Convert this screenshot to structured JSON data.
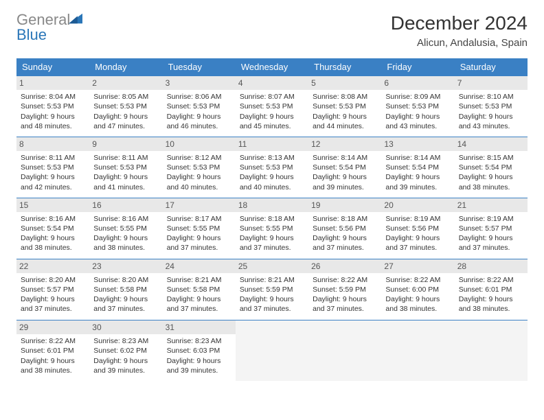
{
  "logo": {
    "word1": "General",
    "word2": "Blue"
  },
  "title": "December 2024",
  "subtitle": "Alicun, Andalusia, Spain",
  "colors": {
    "header_bg": "#3a80c4",
    "header_text": "#ffffff",
    "daynum_bg": "#e8e8e8",
    "row_border": "#3a80c4",
    "logo_gray": "#888888",
    "logo_blue": "#2a76b8"
  },
  "weekdays": [
    "Sunday",
    "Monday",
    "Tuesday",
    "Wednesday",
    "Thursday",
    "Friday",
    "Saturday"
  ],
  "days": [
    {
      "n": 1,
      "sunrise": "8:04 AM",
      "sunset": "5:53 PM",
      "daylight": "9 hours and 48 minutes."
    },
    {
      "n": 2,
      "sunrise": "8:05 AM",
      "sunset": "5:53 PM",
      "daylight": "9 hours and 47 minutes."
    },
    {
      "n": 3,
      "sunrise": "8:06 AM",
      "sunset": "5:53 PM",
      "daylight": "9 hours and 46 minutes."
    },
    {
      "n": 4,
      "sunrise": "8:07 AM",
      "sunset": "5:53 PM",
      "daylight": "9 hours and 45 minutes."
    },
    {
      "n": 5,
      "sunrise": "8:08 AM",
      "sunset": "5:53 PM",
      "daylight": "9 hours and 44 minutes."
    },
    {
      "n": 6,
      "sunrise": "8:09 AM",
      "sunset": "5:53 PM",
      "daylight": "9 hours and 43 minutes."
    },
    {
      "n": 7,
      "sunrise": "8:10 AM",
      "sunset": "5:53 PM",
      "daylight": "9 hours and 43 minutes."
    },
    {
      "n": 8,
      "sunrise": "8:11 AM",
      "sunset": "5:53 PM",
      "daylight": "9 hours and 42 minutes."
    },
    {
      "n": 9,
      "sunrise": "8:11 AM",
      "sunset": "5:53 PM",
      "daylight": "9 hours and 41 minutes."
    },
    {
      "n": 10,
      "sunrise": "8:12 AM",
      "sunset": "5:53 PM",
      "daylight": "9 hours and 40 minutes."
    },
    {
      "n": 11,
      "sunrise": "8:13 AM",
      "sunset": "5:53 PM",
      "daylight": "9 hours and 40 minutes."
    },
    {
      "n": 12,
      "sunrise": "8:14 AM",
      "sunset": "5:54 PM",
      "daylight": "9 hours and 39 minutes."
    },
    {
      "n": 13,
      "sunrise": "8:14 AM",
      "sunset": "5:54 PM",
      "daylight": "9 hours and 39 minutes."
    },
    {
      "n": 14,
      "sunrise": "8:15 AM",
      "sunset": "5:54 PM",
      "daylight": "9 hours and 38 minutes."
    },
    {
      "n": 15,
      "sunrise": "8:16 AM",
      "sunset": "5:54 PM",
      "daylight": "9 hours and 38 minutes."
    },
    {
      "n": 16,
      "sunrise": "8:16 AM",
      "sunset": "5:55 PM",
      "daylight": "9 hours and 38 minutes."
    },
    {
      "n": 17,
      "sunrise": "8:17 AM",
      "sunset": "5:55 PM",
      "daylight": "9 hours and 37 minutes."
    },
    {
      "n": 18,
      "sunrise": "8:18 AM",
      "sunset": "5:55 PM",
      "daylight": "9 hours and 37 minutes."
    },
    {
      "n": 19,
      "sunrise": "8:18 AM",
      "sunset": "5:56 PM",
      "daylight": "9 hours and 37 minutes."
    },
    {
      "n": 20,
      "sunrise": "8:19 AM",
      "sunset": "5:56 PM",
      "daylight": "9 hours and 37 minutes."
    },
    {
      "n": 21,
      "sunrise": "8:19 AM",
      "sunset": "5:57 PM",
      "daylight": "9 hours and 37 minutes."
    },
    {
      "n": 22,
      "sunrise": "8:20 AM",
      "sunset": "5:57 PM",
      "daylight": "9 hours and 37 minutes."
    },
    {
      "n": 23,
      "sunrise": "8:20 AM",
      "sunset": "5:58 PM",
      "daylight": "9 hours and 37 minutes."
    },
    {
      "n": 24,
      "sunrise": "8:21 AM",
      "sunset": "5:58 PM",
      "daylight": "9 hours and 37 minutes."
    },
    {
      "n": 25,
      "sunrise": "8:21 AM",
      "sunset": "5:59 PM",
      "daylight": "9 hours and 37 minutes."
    },
    {
      "n": 26,
      "sunrise": "8:22 AM",
      "sunset": "5:59 PM",
      "daylight": "9 hours and 37 minutes."
    },
    {
      "n": 27,
      "sunrise": "8:22 AM",
      "sunset": "6:00 PM",
      "daylight": "9 hours and 38 minutes."
    },
    {
      "n": 28,
      "sunrise": "8:22 AM",
      "sunset": "6:01 PM",
      "daylight": "9 hours and 38 minutes."
    },
    {
      "n": 29,
      "sunrise": "8:22 AM",
      "sunset": "6:01 PM",
      "daylight": "9 hours and 38 minutes."
    },
    {
      "n": 30,
      "sunrise": "8:23 AM",
      "sunset": "6:02 PM",
      "daylight": "9 hours and 39 minutes."
    },
    {
      "n": 31,
      "sunrise": "8:23 AM",
      "sunset": "6:03 PM",
      "daylight": "9 hours and 39 minutes."
    }
  ],
  "labels": {
    "sunrise": "Sunrise:",
    "sunset": "Sunset:",
    "daylight": "Daylight:"
  },
  "layout": {
    "start_weekday": 0,
    "trailing_empty": 4
  }
}
